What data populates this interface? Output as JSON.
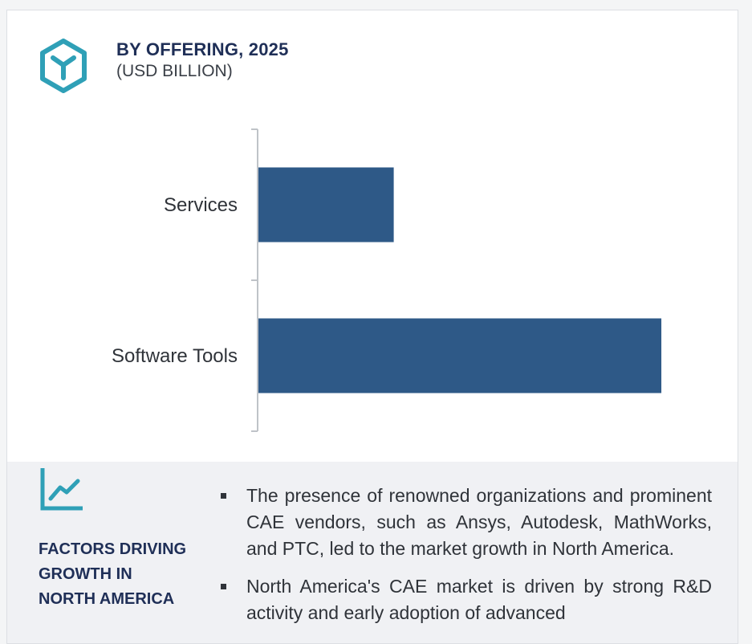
{
  "header": {
    "title": "BY OFFERING, 2025",
    "subtitle": "(USD BILLION)",
    "icon": "cube-icon"
  },
  "colors": {
    "bar": "#2e5987",
    "accent": "#2fa0b7",
    "title": "#1f2f57"
  },
  "chart_data": {
    "type": "bar",
    "orientation": "horizontal",
    "categories": [
      "Services",
      "Software Tools"
    ],
    "values": [
      4.5,
      13.4
    ],
    "xlim": [
      0,
      15
    ],
    "grid": false,
    "legend": "none"
  },
  "factors": {
    "icon": "trend-chart-icon",
    "title_lines": [
      "FACTORS DRIVING",
      "GROWTH IN",
      "NORTH AMERICA"
    ],
    "bullets": [
      "The presence of renowned organizations and prominent CAE vendors, such as Ansys, Autodesk, MathWorks, and PTC, led to the market growth in North America.",
      "North America's CAE market is driven by strong R&D activity and early adoption of advanced"
    ]
  }
}
